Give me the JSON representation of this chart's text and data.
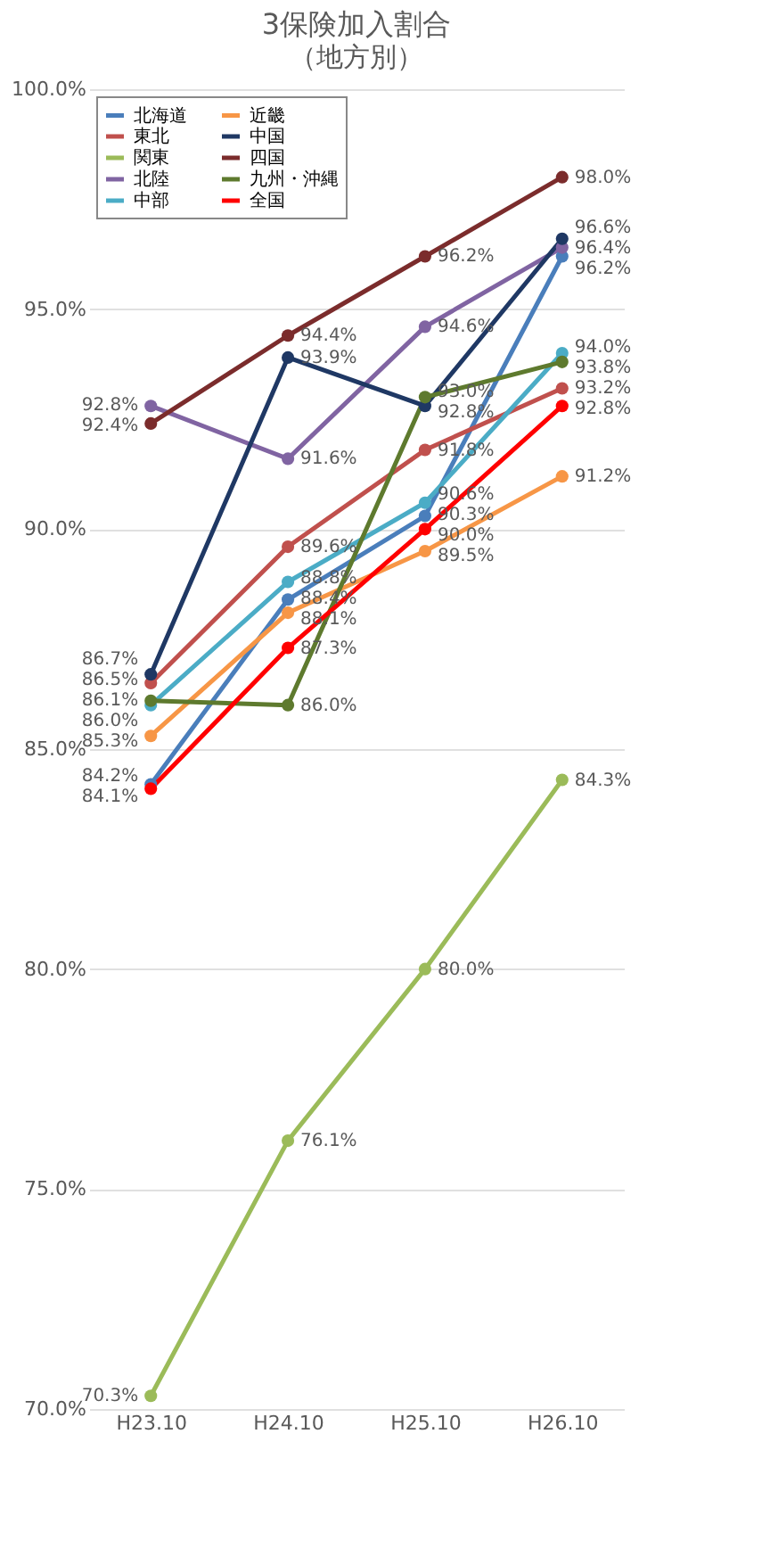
{
  "chart_data": {
    "type": "line",
    "title": "3保険加入割合",
    "subtitle": "（地方別）",
    "categories": [
      "H23.10",
      "H24.10",
      "H25.10",
      "H26.10"
    ],
    "series": [
      {
        "name": "北海道",
        "color": "#4a7ebb",
        "values": [
          84.2,
          88.4,
          90.3,
          96.2
        ],
        "value_labels": [
          "84.2%",
          "88.4%",
          "90.3%",
          "96.2%"
        ]
      },
      {
        "name": "東北",
        "color": "#c0504d",
        "values": [
          86.5,
          89.6,
          91.8,
          93.2
        ],
        "value_labels": [
          "86.5%",
          "89.6%",
          "91.8%",
          "93.2%"
        ]
      },
      {
        "name": "関東",
        "color": "#9bbb59",
        "values": [
          70.3,
          76.1,
          80.0,
          84.3
        ],
        "value_labels": [
          "70.3%",
          "76.1%",
          "80.0%",
          "84.3%"
        ]
      },
      {
        "name": "北陸",
        "color": "#8064a2",
        "values": [
          92.8,
          91.6,
          94.6,
          96.4
        ],
        "value_labels": [
          "92.8%",
          "91.6%",
          "94.6%",
          "96.4%"
        ]
      },
      {
        "name": "中部",
        "color": "#4bacc6",
        "values": [
          86.0,
          88.8,
          90.6,
          94.0
        ],
        "value_labels": [
          "86.0%",
          "88.8%",
          "90.6%",
          "94.0%"
        ]
      },
      {
        "name": "近畿",
        "color": "#f79646",
        "values": [
          85.3,
          88.1,
          89.5,
          91.2
        ],
        "value_labels": [
          "85.3%",
          "88.1%",
          "89.5%",
          "91.2%"
        ]
      },
      {
        "name": "中国",
        "color": "#1f3864",
        "values": [
          86.7,
          93.9,
          92.8,
          96.6
        ],
        "value_labels": [
          "86.7%",
          "93.9%",
          "92.8%",
          "96.6%"
        ]
      },
      {
        "name": "四国",
        "color": "#7b2c2c",
        "values": [
          92.4,
          94.4,
          96.2,
          98.0
        ],
        "value_labels": [
          "92.4%",
          "94.4%",
          "96.2%",
          "98.0%"
        ]
      },
      {
        "name": "九州・沖縄",
        "color": "#5e7a2e",
        "values": [
          86.1,
          86.0,
          93.0,
          93.8
        ],
        "value_labels": [
          "86.1%",
          "86.0%",
          "93.0%",
          "93.8%"
        ]
      },
      {
        "name": "全国",
        "color": "#ff0000",
        "values": [
          84.1,
          87.3,
          90.0,
          92.8
        ],
        "value_labels": [
          "84.1%",
          "87.3%",
          "90.0%",
          "92.8%"
        ]
      }
    ],
    "ylim": [
      70,
      100
    ],
    "yticks": [
      {
        "value": 70,
        "label": "70.0%"
      },
      {
        "value": 75,
        "label": "75.0%"
      },
      {
        "value": 80,
        "label": "80.0%"
      },
      {
        "value": 85,
        "label": "85.0%"
      },
      {
        "value": 90,
        "label": "90.0%"
      },
      {
        "value": 95,
        "label": "95.0%"
      },
      {
        "value": 100,
        "label": "100.0%"
      }
    ],
    "grid": "y",
    "legend": "top left",
    "marker": "circle",
    "line_style": "solid"
  }
}
